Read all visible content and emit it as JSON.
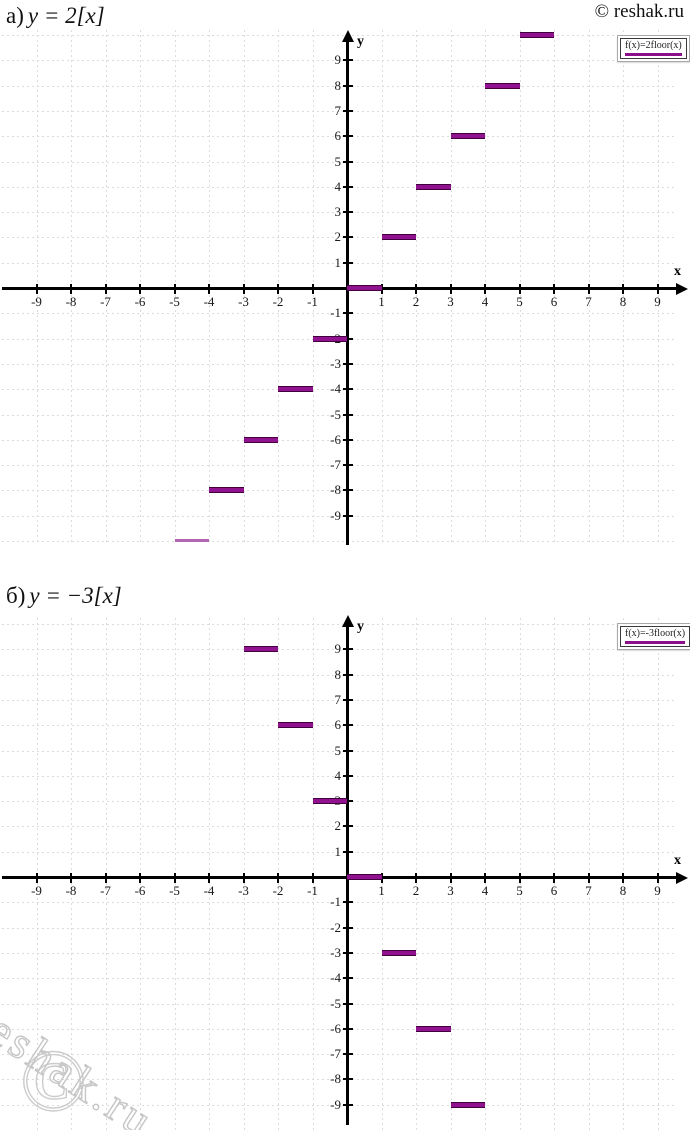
{
  "page": {
    "copyright": "© reshak.ru",
    "watermark": {
      "text": "reshak.ru",
      "symbol": "©"
    }
  },
  "chart_data": [
    {
      "type": "step",
      "id": "a",
      "title": "а) y = 2[x]",
      "title_prefix": "а)",
      "title_formula": "y = 2[x]",
      "function": "f(x) = 2·floor(x)",
      "legend_label": "f(x)=2floor(x)",
      "legend_position": "top-right",
      "xlabel": "x",
      "ylabel": "y",
      "xlim": [
        -9.9,
        9.9
      ],
      "ylim": [
        -10.2,
        10.2
      ],
      "grid": true,
      "line_color": "#8B0E8B",
      "x_ticks": [
        -9,
        -8,
        -7,
        -6,
        -5,
        -4,
        -3,
        -2,
        -1,
        1,
        2,
        3,
        4,
        5,
        6,
        7,
        8,
        9
      ],
      "y_ticks": [
        -9,
        -8,
        -7,
        -6,
        -5,
        -4,
        -3,
        -2,
        -1,
        1,
        2,
        3,
        4,
        5,
        6,
        7,
        8,
        9
      ],
      "segments": [
        {
          "x_start": -5,
          "x_end": -4,
          "y": -10,
          "clipped": true
        },
        {
          "x_start": -4,
          "x_end": -3,
          "y": -8
        },
        {
          "x_start": -3,
          "x_end": -2,
          "y": -6
        },
        {
          "x_start": -2,
          "x_end": -1,
          "y": -4
        },
        {
          "x_start": -1,
          "x_end": 0,
          "y": -2
        },
        {
          "x_start": 0,
          "x_end": 1,
          "y": 0
        },
        {
          "x_start": 1,
          "x_end": 2,
          "y": 2
        },
        {
          "x_start": 2,
          "x_end": 3,
          "y": 4
        },
        {
          "x_start": 3,
          "x_end": 4,
          "y": 6
        },
        {
          "x_start": 4,
          "x_end": 5,
          "y": 8
        },
        {
          "x_start": 5,
          "x_end": 6,
          "y": 10
        }
      ]
    },
    {
      "type": "step",
      "id": "b",
      "title": "б) y = −3[x]",
      "title_prefix": "б)",
      "title_formula": "y = −3[x]",
      "function": "f(x) = −3·floor(x)",
      "legend_label": "f(x)=-3floor(x)",
      "legend_position": "top-right",
      "xlabel": "x",
      "ylabel": "y",
      "xlim": [
        -9.9,
        9.9
      ],
      "ylim": [
        -10.2,
        10.2
      ],
      "grid": true,
      "line_color": "#8B0E8B",
      "x_ticks": [
        -9,
        -8,
        -7,
        -6,
        -5,
        -4,
        -3,
        -2,
        -1,
        1,
        2,
        3,
        4,
        5,
        6,
        7,
        8,
        9
      ],
      "y_ticks": [
        -9,
        -8,
        -7,
        -6,
        -5,
        -4,
        -3,
        -2,
        -1,
        1,
        2,
        3,
        4,
        5,
        6,
        7,
        8,
        9
      ],
      "segments": [
        {
          "x_start": -3,
          "x_end": -2,
          "y": 9
        },
        {
          "x_start": -2,
          "x_end": -1,
          "y": 6
        },
        {
          "x_start": -1,
          "x_end": 0,
          "y": 3
        },
        {
          "x_start": 0,
          "x_end": 1,
          "y": 0
        },
        {
          "x_start": 1,
          "x_end": 2,
          "y": -3
        },
        {
          "x_start": 2,
          "x_end": 3,
          "y": -6
        },
        {
          "x_start": 3,
          "x_end": 4,
          "y": -9
        }
      ]
    }
  ]
}
